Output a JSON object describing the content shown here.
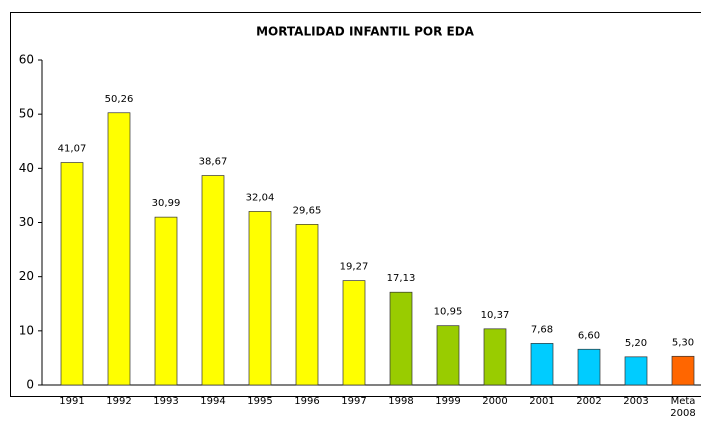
{
  "chart_data": {
    "type": "bar",
    "title": "MORTALIDAD INFANTIL POR EDA",
    "categories": [
      "1991",
      "1992",
      "1993",
      "1994",
      "1995",
      "1996",
      "1997",
      "1998",
      "1999",
      "2000",
      "2001",
      "2002",
      "2003",
      "Meta 2008"
    ],
    "values": [
      41.07,
      50.26,
      30.99,
      38.67,
      32.04,
      29.65,
      19.27,
      17.13,
      10.95,
      10.37,
      7.68,
      6.6,
      5.2,
      5.3
    ],
    "value_labels": [
      "41,07",
      "50,26",
      "30,99",
      "38,67",
      "32,04",
      "29,65",
      "19,27",
      "17,13",
      "10,95",
      "10,37",
      "7,68",
      "6,60",
      "5,20",
      "5,30"
    ],
    "colors": [
      "#ffff00",
      "#ffff00",
      "#ffff00",
      "#ffff00",
      "#ffff00",
      "#ffff00",
      "#ffff00",
      "#99cc00",
      "#99cc00",
      "#99cc00",
      "#00ccff",
      "#00ccff",
      "#00ccff",
      "#ff6600"
    ],
    "ylim": [
      0,
      60
    ],
    "yticks": [
      0,
      10,
      20,
      30,
      40,
      50,
      60
    ],
    "grid": false
  }
}
